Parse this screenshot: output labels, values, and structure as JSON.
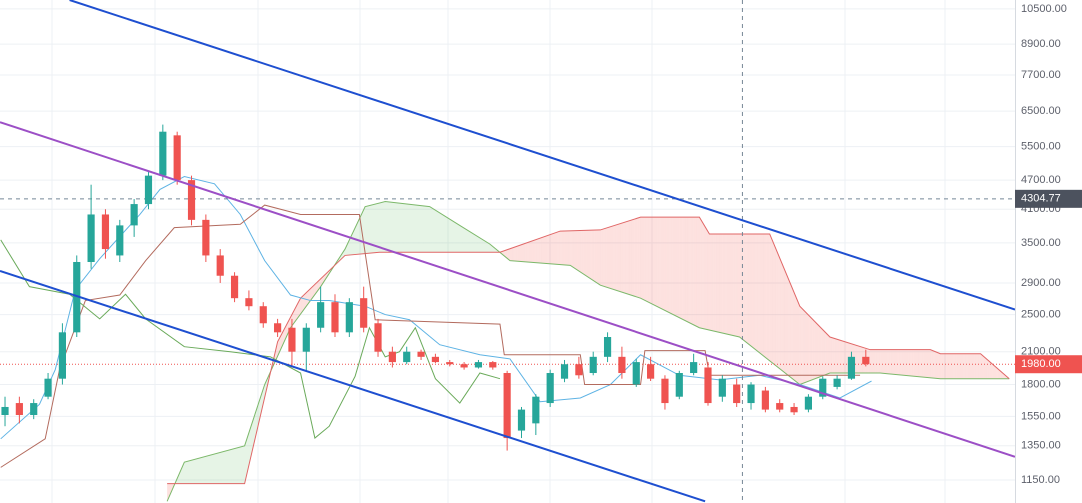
{
  "chart_data": {
    "type": "candlestick",
    "log_y": true,
    "grid": true,
    "ylim": [
      1032,
      10950
    ],
    "xlim": [
      -0.35,
      70.4
    ],
    "yticks": [
      {
        "value": 10500,
        "label": "10500.00"
      },
      {
        "value": 8900,
        "label": "8900.00"
      },
      {
        "value": 7700,
        "label": "7700.00"
      },
      {
        "value": 6500,
        "label": "6500.00"
      },
      {
        "value": 5500,
        "label": "5500.00"
      },
      {
        "value": 4700,
        "label": "4700.00"
      },
      {
        "value": 4100,
        "label": "4100.00"
      },
      {
        "value": 3500,
        "label": "3500.00"
      },
      {
        "value": 2900,
        "label": "2900.00"
      },
      {
        "value": 2500,
        "label": "2500.00"
      },
      {
        "value": 2100,
        "label": "2100.00"
      },
      {
        "value": 1800,
        "label": "1800.00"
      },
      {
        "value": 1550,
        "label": "1550.00"
      },
      {
        "value": 1350,
        "label": "1350.00"
      },
      {
        "value": 1150,
        "label": "1150.00"
      }
    ],
    "up_color": "#26a69a",
    "down_color": "#ef5350",
    "open": [
      1560,
      1650,
      1560,
      1700,
      1850,
      2300,
      3200,
      4000,
      3300,
      3800,
      4200,
      4800,
      5800,
      4700,
      3900,
      3300,
      3000,
      2700,
      2600,
      2400,
      2350,
      2100,
      2350,
      2650,
      2300,
      2700,
      2400,
      2100,
      2000,
      2100,
      2050,
      2000,
      1980,
      1950,
      2000,
      1900,
      1450,
      1500,
      1650,
      1850,
      1980,
      1900,
      2050,
      2050,
      1800,
      1980,
      1850,
      1700,
      1900,
      1950,
      1700,
      1800,
      1650,
      1750,
      1650,
      1620,
      1600,
      1700,
      1780,
      1850,
      2050
    ],
    "high": [
      1700,
      1700,
      1680,
      1900,
      2400,
      3300,
      4600,
      4100,
      3900,
      4300,
      4900,
      6100,
      5900,
      4800,
      4000,
      3400,
      3050,
      2800,
      2650,
      2450,
      2450,
      2400,
      2850,
      2750,
      2700,
      2850,
      2450,
      2150,
      2150,
      2120,
      2080,
      2020,
      2000,
      2020,
      2010,
      1920,
      1620,
      1720,
      1930,
      2020,
      2050,
      2100,
      2300,
      2150,
      2030,
      2050,
      1880,
      1920,
      2080,
      2000,
      1880,
      1850,
      1820,
      1780,
      1680,
      1650,
      1720,
      1870,
      1880,
      2100,
      2120
    ],
    "low": [
      1480,
      1500,
      1530,
      1680,
      1800,
      2250,
      3100,
      3250,
      3200,
      3600,
      4100,
      4700,
      4600,
      3800,
      3200,
      2900,
      2650,
      2550,
      2350,
      2250,
      1950,
      1920,
      2300,
      2250,
      2250,
      2300,
      2050,
      1950,
      1980,
      2020,
      1990,
      1960,
      1930,
      1940,
      1930,
      1320,
      1400,
      1420,
      1620,
      1820,
      1850,
      1880,
      2000,
      1850,
      1780,
      1830,
      1600,
      1680,
      1880,
      1630,
      1660,
      1620,
      1600,
      1580,
      1580,
      1560,
      1580,
      1680,
      1760,
      1840,
      1960
    ],
    "close": [
      1620,
      1560,
      1650,
      1850,
      2300,
      3200,
      4000,
      3400,
      3800,
      4200,
      4800,
      5900,
      4700,
      3900,
      3300,
      3000,
      2700,
      2600,
      2400,
      2300,
      2100,
      2350,
      2650,
      2300,
      2650,
      2350,
      2100,
      2000,
      2100,
      2050,
      2000,
      1980,
      1950,
      2000,
      1950,
      1400,
      1600,
      1700,
      1900,
      1980,
      1880,
      2050,
      2250,
      1900,
      2000,
      1850,
      1650,
      1900,
      2000,
      1650,
      1850,
      1650,
      1800,
      1600,
      1600,
      1580,
      1700,
      1850,
      1850,
      2050,
      1980
    ],
    "lines": [
      {
        "color": "#5eb3e4",
        "x": [
          -0.3,
          2.4,
          3.5,
          4.9,
          6.6,
          9.4,
          10.8,
          12.5,
          14.6,
          16.4,
          18.1,
          19.9,
          21.3,
          22.6,
          25.1,
          26.5,
          28.2,
          30.3,
          33.1,
          35.2,
          37.3,
          40.1,
          42.2,
          44.3,
          47.0,
          49.8,
          52.6,
          55.4,
          58.2,
          60.4
        ],
        "values": [
          1395,
          1640,
          1930,
          2810,
          3250,
          4000,
          4500,
          4780,
          4620,
          4000,
          3220,
          2740,
          2670,
          2670,
          2600,
          2500,
          2440,
          2170,
          2070,
          2030,
          1660,
          1690,
          1800,
          2070,
          1880,
          1840,
          1880,
          1800,
          1690,
          1830
        ]
      },
      {
        "color": "#b36b5e",
        "x": [
          -0.3,
          2.8,
          3.8,
          5.6,
          8.0,
          9.8,
          11.8,
          16.4,
          18.1,
          20.6,
          24.7,
          25.8,
          34.5,
          34.8,
          40.1,
          40.4,
          44.3,
          44.6,
          48.8,
          49.1,
          59.6
        ],
        "values": [
          1220,
          1395,
          1930,
          2670,
          2740,
          3220,
          3760,
          3820,
          4180,
          4000,
          4000,
          2440,
          2390,
          2070,
          2070,
          1800,
          1800,
          2110,
          2110,
          1880,
          1880
        ]
      },
      {
        "color": "#6aaa5a",
        "x": [
          -0.3,
          1.7,
          4.5,
          6.6,
          8.4,
          9.8,
          12.5,
          15.7,
          18.5,
          20.6,
          21.6,
          22.6,
          24.4,
          25.4,
          26.5,
          27.5,
          28.6,
          30.0,
          31.7,
          33.1,
          34.5
        ],
        "values": [
          3550,
          2850,
          2750,
          2450,
          2750,
          2450,
          2150,
          2100,
          2050,
          1900,
          1400,
          1480,
          1870,
          2350,
          2050,
          2100,
          2350,
          1850,
          1650,
          1900,
          1850
        ]
      }
    ],
    "cloud": {
      "bull_fill": "rgba(76,175,80,0.14)",
      "bear_fill": "rgba(244,67,54,0.16)",
      "span_a": {
        "color": "#7cb86a",
        "x": [
          11.3,
          12.5,
          16.7,
          18.1,
          19.9,
          22.0,
          23.7,
          25.1,
          26.5,
          29.6,
          31.7,
          33.8,
          35.2,
          39.4,
          41.5,
          44.3,
          48.4,
          51.2,
          55.4,
          57.5,
          61.0,
          65.2,
          70.0
        ],
        "values": [
          1040,
          1250,
          1350,
          1800,
          2350,
          2850,
          3400,
          4150,
          4250,
          4150,
          3800,
          3480,
          3220,
          3150,
          2870,
          2700,
          2350,
          2250,
          1800,
          1900,
          1900,
          1850,
          1850
        ]
      },
      "span_b": {
        "color": "#e06666",
        "x": [
          11.3,
          16.7,
          19.0,
          20.6,
          23.7,
          26.1,
          34.5,
          38.7,
          41.5,
          44.3,
          48.4,
          49.1,
          53.3,
          55.4,
          57.5,
          60.3,
          64.5,
          65.2,
          68.0,
          70.0
        ],
        "values": [
          1130,
          1130,
          2200,
          2700,
          3300,
          3350,
          3350,
          3700,
          3720,
          3950,
          3950,
          3650,
          3650,
          2600,
          2250,
          2120,
          2120,
          2080,
          2080,
          1850
        ]
      }
    },
    "trendlines": [
      {
        "color": "#1e4fd0",
        "x": [
          4.5,
          70.4
        ],
        "values": [
          10950,
          2560
        ]
      },
      {
        "color": "#1e4fd0",
        "x": [
          -0.35,
          48.8
        ],
        "values": [
          3068,
          1040
        ]
      },
      {
        "color": "#9c4fc6",
        "x": [
          -0.35,
          70.4
        ],
        "values": [
          6170,
          1282
        ]
      }
    ],
    "last_price": {
      "value": 1980,
      "label": "1980.00"
    },
    "crosshair": {
      "x": 51.4,
      "y": 4304.77
    }
  }
}
